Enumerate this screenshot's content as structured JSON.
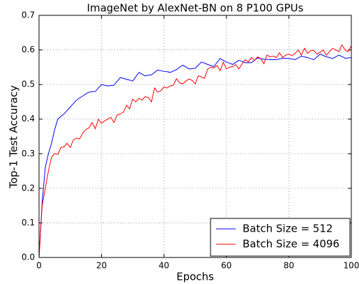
{
  "chart_data": {
    "type": "line",
    "title": "ImageNet by AlexNet-BN on 8 P100 GPUs",
    "xlabel": "Epochs",
    "ylabel": "Top-1 Test Accuracy",
    "x": [
      0,
      1,
      2,
      3,
      4,
      5,
      6,
      7,
      8,
      9,
      10,
      11,
      12,
      13,
      14,
      15,
      16,
      17,
      18,
      19,
      20,
      21,
      22,
      23,
      24,
      25,
      26,
      27,
      28,
      29,
      30,
      31,
      32,
      33,
      34,
      35,
      36,
      37,
      38,
      39,
      40,
      41,
      42,
      43,
      44,
      45,
      46,
      47,
      48,
      49,
      50,
      51,
      52,
      53,
      54,
      55,
      56,
      57,
      58,
      59,
      60,
      61,
      62,
      63,
      64,
      65,
      66,
      67,
      68,
      69,
      70,
      71,
      72,
      73,
      74,
      75,
      76,
      77,
      78,
      79,
      80,
      81,
      82,
      83,
      84,
      85,
      86,
      87,
      88,
      89,
      90,
      91,
      92,
      93,
      94,
      95,
      96,
      97,
      98,
      99,
      100
    ],
    "series": [
      {
        "name": "Batch Size = 512",
        "color": "#0000ff",
        "values": [
          0,
          0.16,
          0.26,
          0.3,
          0.33,
          0.37,
          0.4,
          0.408,
          0.415,
          0.425,
          0.435,
          0.445,
          0.455,
          0.461,
          0.467,
          0.473,
          0.478,
          0.479,
          0.48,
          0.49,
          0.5,
          0.498,
          0.496,
          0.497,
          0.498,
          0.509,
          0.52,
          0.518,
          0.515,
          0.513,
          0.51,
          0.523,
          0.535,
          0.53,
          0.525,
          0.527,
          0.528,
          0.535,
          0.542,
          0.54,
          0.538,
          0.537,
          0.535,
          0.539,
          0.543,
          0.55,
          0.556,
          0.551,
          0.545,
          0.546,
          0.547,
          0.556,
          0.565,
          0.562,
          0.558,
          0.555,
          0.552,
          0.564,
          0.575,
          0.57,
          0.565,
          0.562,
          0.558,
          0.564,
          0.57,
          0.567,
          0.563,
          0.563,
          0.563,
          0.57,
          0.577,
          0.575,
          0.573,
          0.573,
          0.572,
          0.572,
          0.572,
          0.574,
          0.576,
          0.576,
          0.575,
          0.574,
          0.572,
          0.577,
          0.582,
          0.58,
          0.578,
          0.575,
          0.572,
          0.58,
          0.588,
          0.584,
          0.58,
          0.578,
          0.575,
          0.58,
          0.585,
          0.581,
          0.576,
          0.577,
          0.578
        ]
      },
      {
        "name": "Batch Size = 4096",
        "color": "#ff0000",
        "values": [
          0,
          0.15,
          0.2,
          0.25,
          0.29,
          0.3,
          0.298,
          0.318,
          0.32,
          0.33,
          0.318,
          0.34,
          0.345,
          0.343,
          0.36,
          0.37,
          0.375,
          0.39,
          0.372,
          0.4,
          0.388,
          0.395,
          0.4,
          0.405,
          0.39,
          0.412,
          0.415,
          0.42,
          0.44,
          0.43,
          0.458,
          0.45,
          0.46,
          0.455,
          0.465,
          0.462,
          0.45,
          0.49,
          0.478,
          0.482,
          0.493,
          0.49,
          0.496,
          0.498,
          0.517,
          0.505,
          0.502,
          0.51,
          0.516,
          0.512,
          0.502,
          0.525,
          0.522,
          0.518,
          0.545,
          0.55,
          0.548,
          0.555,
          0.54,
          0.565,
          0.545,
          0.55,
          0.552,
          0.558,
          0.545,
          0.56,
          0.572,
          0.565,
          0.578,
          0.57,
          0.58,
          0.575,
          0.56,
          0.585,
          0.58,
          0.582,
          0.578,
          0.592,
          0.578,
          0.585,
          0.588,
          0.583,
          0.59,
          0.6,
          0.585,
          0.605,
          0.59,
          0.598,
          0.598,
          0.588,
          0.593,
          0.6,
          0.585,
          0.595,
          0.605,
          0.6,
          0.595,
          0.615,
          0.6,
          0.595,
          0.612
        ]
      }
    ],
    "xlim": [
      0,
      100
    ],
    "xticks": [
      0,
      20,
      40,
      60,
      80,
      100
    ],
    "ylim": [
      0,
      0.7
    ],
    "yticks": [
      {
        "value": 0,
        "label": "0.0"
      },
      0.1,
      0.2,
      0.3,
      0.4,
      0.5,
      0.6,
      0.7
    ],
    "grid": true,
    "legend": "lower right"
  }
}
